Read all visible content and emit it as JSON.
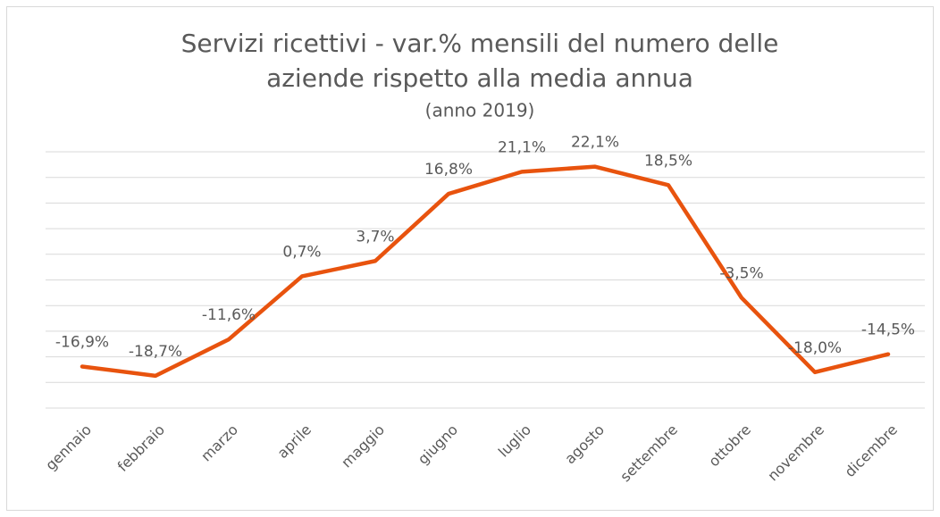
{
  "chart_data": {
    "type": "line",
    "title": [
      "Servizi ricettivi - var.% mensili del numero delle",
      "aziende rispetto alla media annua"
    ],
    "subtitle": "(anno 2019)",
    "categories": [
      "gennaio",
      "febbraio",
      "marzo",
      "aprile",
      "maggio",
      "giugno",
      "luglio",
      "agosto",
      "settembre",
      "ottobre",
      "novembre",
      "dicembre"
    ],
    "values": [
      -16.9,
      -18.7,
      -11.6,
      0.7,
      3.7,
      16.8,
      21.1,
      22.1,
      18.5,
      -3.5,
      -18.0,
      -14.5
    ],
    "value_labels": [
      "-16,9%",
      "-18,7%",
      "-11,6%",
      "0,7%",
      "3,7%",
      "16,8%",
      "21,1%",
      "22,1%",
      "18,5%",
      "-3,5%",
      "-18,0%",
      "-14,5%"
    ],
    "color": "#e8530e",
    "ylim": [
      -25,
      25
    ],
    "yticks": [
      -25,
      -20,
      -15,
      -10,
      -5,
      0,
      5,
      10,
      15,
      20,
      25
    ],
    "grid": true
  }
}
